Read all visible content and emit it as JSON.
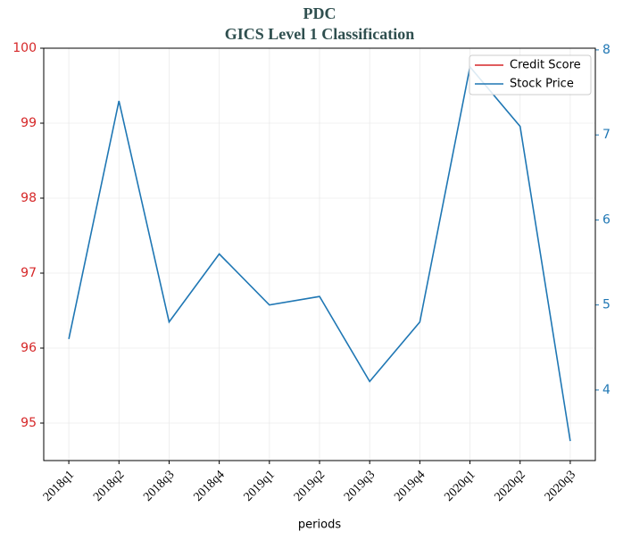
{
  "chart_data": {
    "type": "line",
    "title": "PDC",
    "subtitle": "GICS Level 1 Classification",
    "x_label": "periods",
    "categories": [
      "2018q1",
      "2018q2",
      "2018q3",
      "2018q4",
      "2019q1",
      "2019q2",
      "2019q3",
      "2019q4",
      "2020q1",
      "2020q2",
      "2020q3"
    ],
    "series": [
      {
        "name": "Credit Score",
        "color": "#d62728",
        "values": [
          null,
          null,
          null,
          null,
          null,
          null,
          null,
          null,
          null,
          null,
          null
        ]
      },
      {
        "name": "Stock Price",
        "color": "#1f77b4",
        "axis": "y2",
        "values": [
          4.6,
          7.4,
          4.8,
          5.6,
          5.0,
          5.1,
          4.1,
          4.8,
          7.8,
          7.1,
          3.4
        ]
      }
    ],
    "ylim": [
      94.5,
      100
    ],
    "yticks": [
      95,
      96,
      97,
      98,
      99,
      100
    ],
    "ytick_color": "#d62728",
    "y2lim": [
      3.17,
      8.02
    ],
    "y2ticks": [
      4,
      5,
      6,
      7,
      8
    ],
    "y2tick_color": "#1f77b4",
    "grid": true,
    "legend": "upper right"
  }
}
